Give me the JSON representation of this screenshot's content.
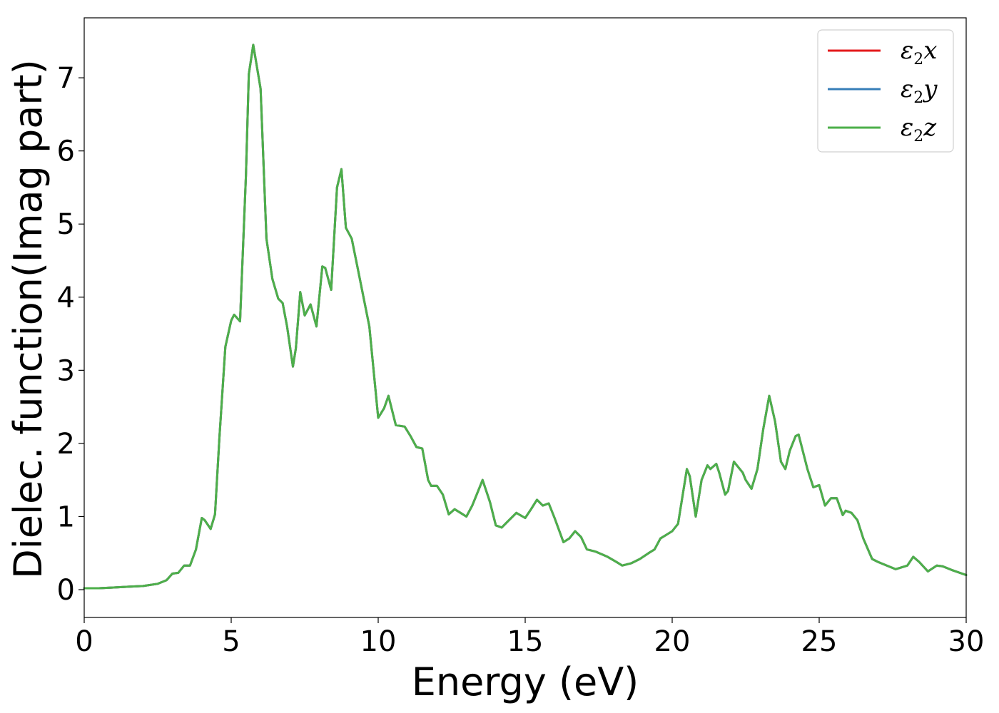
{
  "chart_data": {
    "type": "line",
    "xlabel": "Energy (eV)",
    "ylabel": "Dielec. function(Imag part)",
    "xlim": [
      0,
      30
    ],
    "ylim": [
      -0.38,
      7.82
    ],
    "xticks": [
      0,
      5,
      10,
      15,
      20,
      25,
      30
    ],
    "yticks": [
      0,
      1,
      2,
      3,
      4,
      5,
      6,
      7
    ],
    "grid": false,
    "legend_position": "top-right",
    "x": [
      0,
      0.5,
      1,
      1.5,
      2,
      2.5,
      2.8,
      3.0,
      3.2,
      3.4,
      3.6,
      3.8,
      4.0,
      4.1,
      4.3,
      4.45,
      4.6,
      4.8,
      5.0,
      5.1,
      5.3,
      5.5,
      5.6,
      5.75,
      6.0,
      6.2,
      6.4,
      6.6,
      6.75,
      6.9,
      7.1,
      7.2,
      7.35,
      7.5,
      7.7,
      7.9,
      8.1,
      8.2,
      8.4,
      8.6,
      8.75,
      8.9,
      9.1,
      9.3,
      9.5,
      9.7,
      10.0,
      10.2,
      10.35,
      10.6,
      10.9,
      11.1,
      11.3,
      11.5,
      11.7,
      11.8,
      12.0,
      12.2,
      12.4,
      12.6,
      12.8,
      13.0,
      13.2,
      13.4,
      13.55,
      13.8,
      14.0,
      14.2,
      14.4,
      14.7,
      15.0,
      15.2,
      15.4,
      15.6,
      15.8,
      16.0,
      16.3,
      16.5,
      16.7,
      16.9,
      17.1,
      17.4,
      17.8,
      18.1,
      18.3,
      18.6,
      18.9,
      19.2,
      19.4,
      19.6,
      19.8,
      20.0,
      20.2,
      20.5,
      20.6,
      20.8,
      21.0,
      21.2,
      21.3,
      21.5,
      21.6,
      21.8,
      21.9,
      22.1,
      22.2,
      22.4,
      22.5,
      22.7,
      22.9,
      23.1,
      23.3,
      23.5,
      23.7,
      23.85,
      24.0,
      24.2,
      24.3,
      24.6,
      24.8,
      25.0,
      25.2,
      25.4,
      25.6,
      25.8,
      25.9,
      26.1,
      26.3,
      26.5,
      26.8,
      27.0,
      27.3,
      27.6,
      28.0,
      28.2,
      28.4,
      28.7,
      29.0,
      29.2,
      29.5,
      30.0
    ],
    "series": [
      {
        "name": "x",
        "color": "#e41a1c",
        "values": [
          0.02,
          0.02,
          0.03,
          0.04,
          0.05,
          0.08,
          0.13,
          0.22,
          0.23,
          0.33,
          0.33,
          0.55,
          0.98,
          0.95,
          0.83,
          1.03,
          2.08,
          3.32,
          3.68,
          3.76,
          3.67,
          5.65,
          7.05,
          7.45,
          6.85,
          4.8,
          4.25,
          3.98,
          3.92,
          3.6,
          3.05,
          3.3,
          4.07,
          3.75,
          3.9,
          3.6,
          4.42,
          4.4,
          4.1,
          5.5,
          5.75,
          4.95,
          4.8,
          4.4,
          4.0,
          3.6,
          2.35,
          2.48,
          2.65,
          2.25,
          2.23,
          2.1,
          1.95,
          1.93,
          1.5,
          1.42,
          1.42,
          1.3,
          1.03,
          1.1,
          1.05,
          1.0,
          1.15,
          1.35,
          1.5,
          1.2,
          0.88,
          0.85,
          0.93,
          1.05,
          0.98,
          1.1,
          1.23,
          1.15,
          1.18,
          0.98,
          0.65,
          0.7,
          0.8,
          0.72,
          0.55,
          0.52,
          0.45,
          0.38,
          0.33,
          0.36,
          0.42,
          0.5,
          0.55,
          0.7,
          0.75,
          0.8,
          0.9,
          1.65,
          1.55,
          1.0,
          1.5,
          1.7,
          1.65,
          1.72,
          1.6,
          1.3,
          1.35,
          1.75,
          1.7,
          1.6,
          1.5,
          1.38,
          1.65,
          2.2,
          2.65,
          2.3,
          1.75,
          1.65,
          1.9,
          2.1,
          2.12,
          1.65,
          1.4,
          1.43,
          1.15,
          1.25,
          1.25,
          1.02,
          1.08,
          1.05,
          0.95,
          0.7,
          0.42,
          0.38,
          0.33,
          0.28,
          0.33,
          0.45,
          0.38,
          0.25,
          0.33,
          0.32,
          0.27,
          0.2
        ]
      },
      {
        "name": "y",
        "color": "#377eb8",
        "values": [
          0.02,
          0.02,
          0.03,
          0.04,
          0.05,
          0.08,
          0.13,
          0.22,
          0.23,
          0.33,
          0.33,
          0.55,
          0.98,
          0.95,
          0.83,
          1.03,
          2.08,
          3.32,
          3.68,
          3.76,
          3.67,
          5.65,
          7.05,
          7.45,
          6.85,
          4.8,
          4.25,
          3.98,
          3.92,
          3.6,
          3.05,
          3.3,
          4.07,
          3.75,
          3.9,
          3.6,
          4.42,
          4.4,
          4.1,
          5.5,
          5.75,
          4.95,
          4.8,
          4.4,
          4.0,
          3.6,
          2.35,
          2.48,
          2.65,
          2.25,
          2.23,
          2.1,
          1.95,
          1.93,
          1.5,
          1.42,
          1.42,
          1.3,
          1.03,
          1.1,
          1.05,
          1.0,
          1.15,
          1.35,
          1.5,
          1.2,
          0.88,
          0.85,
          0.93,
          1.05,
          0.98,
          1.1,
          1.23,
          1.15,
          1.18,
          0.98,
          0.65,
          0.7,
          0.8,
          0.72,
          0.55,
          0.52,
          0.45,
          0.38,
          0.33,
          0.36,
          0.42,
          0.5,
          0.55,
          0.7,
          0.75,
          0.8,
          0.9,
          1.65,
          1.55,
          1.0,
          1.5,
          1.7,
          1.65,
          1.72,
          1.6,
          1.3,
          1.35,
          1.75,
          1.7,
          1.6,
          1.5,
          1.38,
          1.65,
          2.2,
          2.65,
          2.3,
          1.75,
          1.65,
          1.9,
          2.1,
          2.12,
          1.65,
          1.4,
          1.43,
          1.15,
          1.25,
          1.25,
          1.02,
          1.08,
          1.05,
          0.95,
          0.7,
          0.42,
          0.38,
          0.33,
          0.28,
          0.33,
          0.45,
          0.38,
          0.25,
          0.33,
          0.32,
          0.27,
          0.2
        ]
      },
      {
        "name": "z",
        "color": "#4daf4a",
        "values": [
          0.02,
          0.02,
          0.03,
          0.04,
          0.05,
          0.08,
          0.13,
          0.22,
          0.23,
          0.33,
          0.33,
          0.55,
          0.98,
          0.95,
          0.83,
          1.03,
          2.08,
          3.32,
          3.68,
          3.76,
          3.67,
          5.65,
          7.05,
          7.45,
          6.85,
          4.8,
          4.25,
          3.98,
          3.92,
          3.6,
          3.05,
          3.3,
          4.07,
          3.75,
          3.9,
          3.6,
          4.42,
          4.4,
          4.1,
          5.5,
          5.75,
          4.95,
          4.8,
          4.4,
          4.0,
          3.6,
          2.35,
          2.48,
          2.65,
          2.25,
          2.23,
          2.1,
          1.95,
          1.93,
          1.5,
          1.42,
          1.42,
          1.3,
          1.03,
          1.1,
          1.05,
          1.0,
          1.15,
          1.35,
          1.5,
          1.2,
          0.88,
          0.85,
          0.93,
          1.05,
          0.98,
          1.1,
          1.23,
          1.15,
          1.18,
          0.98,
          0.65,
          0.7,
          0.8,
          0.72,
          0.55,
          0.52,
          0.45,
          0.38,
          0.33,
          0.36,
          0.42,
          0.5,
          0.55,
          0.7,
          0.75,
          0.8,
          0.9,
          1.65,
          1.55,
          1.0,
          1.5,
          1.7,
          1.65,
          1.72,
          1.6,
          1.3,
          1.35,
          1.75,
          1.7,
          1.6,
          1.5,
          1.38,
          1.65,
          2.2,
          2.65,
          2.3,
          1.75,
          1.65,
          1.9,
          2.1,
          2.12,
          1.65,
          1.4,
          1.43,
          1.15,
          1.25,
          1.25,
          1.02,
          1.08,
          1.05,
          0.95,
          0.7,
          0.42,
          0.38,
          0.33,
          0.28,
          0.33,
          0.45,
          0.38,
          0.25,
          0.33,
          0.32,
          0.27,
          0.2
        ]
      }
    ],
    "legend": [
      {
        "prefix": "ε",
        "sub": "2",
        "suffix": "x",
        "color": "#e41a1c"
      },
      {
        "prefix": "ε",
        "sub": "2",
        "suffix": "y",
        "color": "#377eb8"
      },
      {
        "prefix": "ε",
        "sub": "2",
        "suffix": "z",
        "color": "#4daf4a"
      }
    ]
  }
}
